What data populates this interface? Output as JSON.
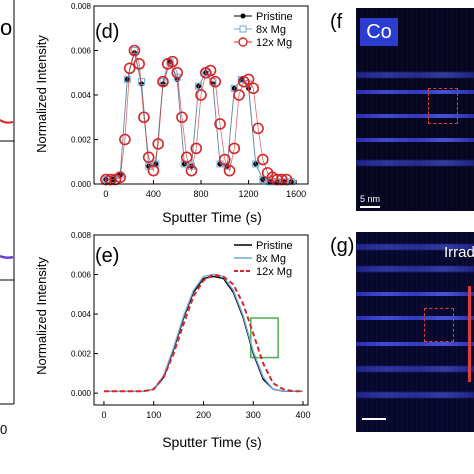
{
  "chart_data": [
    {
      "type": "scatter",
      "panel_label": "(d)",
      "xlabel": "Sputter Time (s)",
      "ylabel": "Normalized Intensity",
      "xlim": [
        -100,
        1700
      ],
      "ylim": [
        0,
        0.008
      ],
      "xticks": [
        "0",
        "400",
        "800",
        "1200",
        "1600"
      ],
      "xtick_values": [
        0,
        400,
        800,
        1200,
        1600
      ],
      "yticks": [
        "0.000",
        "0.002",
        "0.004",
        "0.006",
        "0.008"
      ],
      "ytick_values": [
        0,
        0.002,
        0.004,
        0.006,
        0.008
      ],
      "legend_position": "top-right",
      "series": [
        {
          "name": "Pristine",
          "marker": "filled-circle",
          "color": "#000000",
          "x": [
            0,
            60,
            120,
            180,
            240,
            300,
            360,
            420,
            480,
            540,
            600,
            660,
            720,
            780,
            840,
            900,
            960,
            1020,
            1080,
            1140,
            1200,
            1260,
            1320,
            1380,
            1440,
            1500,
            1560
          ],
          "y": [
            0.0002,
            0.0002,
            0.0004,
            0.0047,
            0.0059,
            0.0045,
            0.0008,
            0.0009,
            0.0045,
            0.0055,
            0.0047,
            0.0009,
            0.0008,
            0.0044,
            0.005,
            0.0045,
            0.0009,
            0.0008,
            0.0043,
            0.0047,
            0.0043,
            0.0009,
            0.0002,
            0.0001,
            0.0001,
            0.0001,
            0.0001
          ]
        },
        {
          "name": "8x Mg",
          "marker": "open-square",
          "color": "#6fa8dc",
          "x": [
            0,
            60,
            120,
            180,
            240,
            300,
            360,
            420,
            480,
            540,
            600,
            660,
            720,
            780,
            840,
            900,
            960,
            1020,
            1080,
            1140,
            1200,
            1260,
            1320,
            1380,
            1440,
            1500,
            1560
          ],
          "y": [
            0.0002,
            0.0002,
            0.0004,
            0.0047,
            0.006,
            0.0046,
            0.0008,
            0.0009,
            0.0046,
            0.0055,
            0.0048,
            0.0009,
            0.0008,
            0.0044,
            0.005,
            0.0046,
            0.0009,
            0.0008,
            0.0043,
            0.0047,
            0.0045,
            0.0009,
            0.0002,
            0.0001,
            0.0001,
            0.0001,
            0.0001
          ]
        },
        {
          "name": "12x Mg",
          "marker": "open-circle",
          "color": "#d62728",
          "x": [
            0,
            40,
            80,
            120,
            160,
            200,
            240,
            280,
            320,
            360,
            400,
            440,
            480,
            520,
            560,
            600,
            640,
            680,
            720,
            760,
            800,
            840,
            880,
            920,
            960,
            1000,
            1040,
            1080,
            1120,
            1160,
            1200,
            1240,
            1280,
            1320,
            1360,
            1400,
            1440,
            1480,
            1520
          ],
          "y": [
            0.0002,
            0.0002,
            0.0002,
            0.0003,
            0.002,
            0.0052,
            0.006,
            0.0054,
            0.003,
            0.0012,
            0.0006,
            0.0018,
            0.0046,
            0.0054,
            0.0055,
            0.005,
            0.003,
            0.0012,
            0.0006,
            0.0016,
            0.004,
            0.005,
            0.0051,
            0.0046,
            0.0027,
            0.0011,
            0.0006,
            0.0016,
            0.004,
            0.0046,
            0.0047,
            0.0043,
            0.0025,
            0.0011,
            0.0005,
            0.0003,
            0.0002,
            0.0002,
            0.0002
          ]
        }
      ]
    },
    {
      "type": "line",
      "panel_label": "(e)",
      "xlabel": "Sputter Time (s)",
      "ylabel": "Normalized Intensity",
      "xlim": [
        -20,
        410
      ],
      "ylim": [
        -0.0006,
        0.008
      ],
      "xticks": [
        "0",
        "100",
        "200",
        "300",
        "400"
      ],
      "xtick_values": [
        0,
        100,
        200,
        300,
        400
      ],
      "yticks": [
        "0.000",
        "0.002",
        "0.004",
        "0.006",
        "0.008"
      ],
      "ytick_values": [
        0,
        0.002,
        0.004,
        0.006,
        0.008
      ],
      "legend_position": "top-right",
      "highlight_box": {
        "x0": 295,
        "x1": 350,
        "y0": 0.0018,
        "y1": 0.0038,
        "color": "#4caf50"
      },
      "series": [
        {
          "name": "Pristine",
          "style": "solid",
          "color": "#000000",
          "x": [
            0,
            40,
            80,
            100,
            120,
            140,
            160,
            180,
            200,
            220,
            240,
            260,
            280,
            300,
            320,
            340,
            360,
            380,
            400
          ],
          "y": [
            0.0001,
            0.0001,
            0.0001,
            0.0002,
            0.0008,
            0.0022,
            0.0038,
            0.0051,
            0.0058,
            0.0059,
            0.0058,
            0.0051,
            0.0038,
            0.002,
            0.0007,
            0.0002,
            0.0001,
            0.0001,
            0.0001
          ]
        },
        {
          "name": "8x Mg",
          "style": "solid",
          "color": "#6fa8dc",
          "x": [
            0,
            40,
            80,
            100,
            120,
            140,
            160,
            180,
            200,
            220,
            240,
            260,
            280,
            300,
            320,
            340,
            360,
            380,
            400
          ],
          "y": [
            0.0001,
            0.0001,
            0.0001,
            0.0002,
            0.0009,
            0.0023,
            0.0039,
            0.0052,
            0.0059,
            0.006,
            0.0059,
            0.0052,
            0.0039,
            0.0021,
            0.0008,
            0.0002,
            0.0001,
            0.0001,
            0.0001
          ]
        },
        {
          "name": "12x Mg",
          "style": "dashed",
          "color": "#d62728",
          "x": [
            0,
            40,
            80,
            100,
            120,
            140,
            160,
            180,
            200,
            220,
            240,
            260,
            280,
            300,
            320,
            340,
            360,
            380,
            400
          ],
          "y": [
            0.0001,
            0.0001,
            0.0001,
            0.0002,
            0.0008,
            0.002,
            0.0035,
            0.0049,
            0.0057,
            0.006,
            0.0059,
            0.0055,
            0.0045,
            0.003,
            0.0015,
            0.0005,
            0.0002,
            0.0001,
            0.0001
          ]
        }
      ]
    }
  ],
  "panel_f": {
    "label": "(f",
    "element": "Co",
    "scale_bar": "5 nm"
  },
  "panel_g": {
    "label": "(g)",
    "text": "Irrad"
  },
  "left_fragment": {
    "label": "o",
    "tick": "0"
  }
}
